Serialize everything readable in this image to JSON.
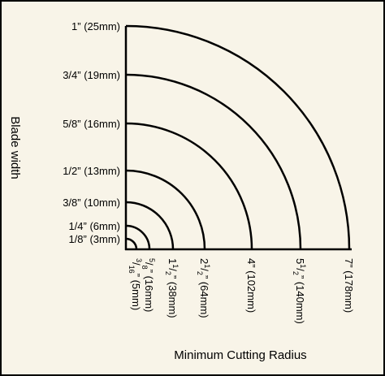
{
  "axis_titles": {
    "y": "Blade width",
    "x": "Minimum Cutting Radius"
  },
  "arcs": [
    {
      "blade": "1/8” (3mm)",
      "radius": {
        "num": "3",
        "den": "16",
        "text": "” (5mm)"
      }
    },
    {
      "blade": "1/4” (6mm)",
      "radius": {
        "num": "5",
        "den": "8",
        "text": "” (16mm)"
      }
    },
    {
      "blade": "3/8” (10mm)",
      "radius": {
        "whole": "1",
        "num": "1",
        "den": "2",
        "text": "” (38mm)"
      }
    },
    {
      "blade": "1/2” (13mm)",
      "radius": {
        "whole": "2",
        "num": "1",
        "den": "2",
        "text": "” (64mm)"
      }
    },
    {
      "blade": "5/8” (16mm)",
      "radius": {
        "whole": "4",
        "text": "” (102mm)"
      }
    },
    {
      "blade": "3/4” (19mm)",
      "radius": {
        "whole": "5",
        "num": "1",
        "den": "2",
        "text": "” (140mm)"
      }
    },
    {
      "blade": "1” (25mm)",
      "radius": {
        "whole": "7",
        "text": "” (178mm)"
      }
    }
  ]
}
